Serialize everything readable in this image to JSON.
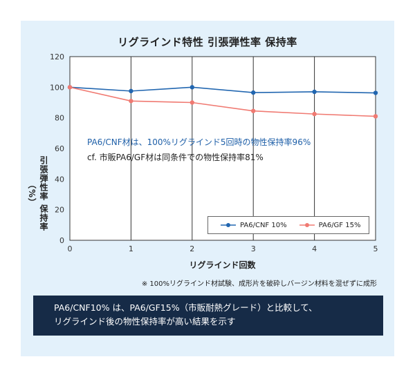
{
  "chart_data": {
    "type": "line",
    "title": "リグラインド特性  引張弾性率  保持率",
    "xlabel": "リグラインド回数",
    "ylabel": "引張弾性率 保持率（%）",
    "x": [
      0,
      1,
      2,
      3,
      4,
      5
    ],
    "xlim": [
      0,
      5
    ],
    "ylim": [
      0,
      120
    ],
    "yticks": [
      0,
      20,
      40,
      60,
      80,
      100,
      120
    ],
    "grid": "vertical",
    "legend_position": "bottom-right",
    "series": [
      {
        "name": "PA6/CNF 10%",
        "color": "#2166b0",
        "values": [
          100,
          97.5,
          100,
          96.5,
          97,
          96.3
        ]
      },
      {
        "name": "PA6/GF 15%",
        "color": "#f07a72",
        "values": [
          100,
          91,
          90,
          84.5,
          82.5,
          81
        ]
      }
    ],
    "annotations": [
      "PA6/CNF材は、100%リグラインド5回時の物性保持率96%",
      "cf. 市販PA6/GF材は同条件での物性保持率81%"
    ]
  },
  "footnote": "※ 100%リグラインド材試験、成形片を破砕しバージン材料を混ぜずに成形",
  "conclusion": {
    "line1": "PA6/CNF10% は、PA6/GF15%（市販耐熱グレード）と比較して、",
    "line2": "リグラインド後の物性保持率が高い結果を示す"
  }
}
